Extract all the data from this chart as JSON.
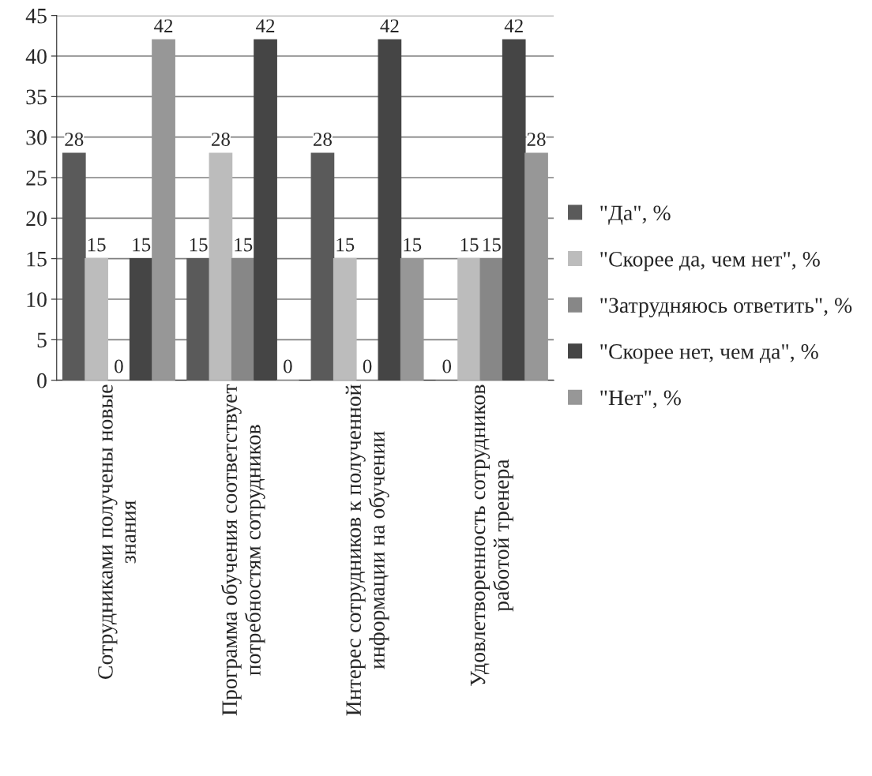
{
  "chart_data": {
    "type": "bar",
    "categories": [
      "Сотрудниками получены новые\nзнания",
      "Программа обучения соответствует\nпотребностям сотрудников",
      "Интерес сотрудников к полученной\nинформации на обучении",
      "Удовлетворенность сотрудников\nработой тренера"
    ],
    "series": [
      {
        "name": "\"Да\", %",
        "color": "#5a5a5a",
        "values": [
          28,
          15,
          28,
          0
        ]
      },
      {
        "name": "\"Скорее да, чем нет\", %",
        "color": "#bcbcbc",
        "values": [
          15,
          28,
          15,
          15
        ]
      },
      {
        "name": "\"Затрудняюсь ответить\", %",
        "color": "#878787",
        "values": [
          0,
          15,
          0,
          15
        ]
      },
      {
        "name": "\"Скорее нет, чем да\", %",
        "color": "#454545",
        "values": [
          15,
          42,
          42,
          42
        ]
      },
      {
        "name": "\"Нет\", %",
        "color": "#979797",
        "values": [
          42,
          0,
          15,
          28
        ]
      }
    ],
    "ylim": [
      0,
      45
    ],
    "yticks": [
      0,
      5,
      10,
      15,
      20,
      25,
      30,
      35,
      40,
      45
    ],
    "grid": "y",
    "legend": "right",
    "data_labels": true
  }
}
